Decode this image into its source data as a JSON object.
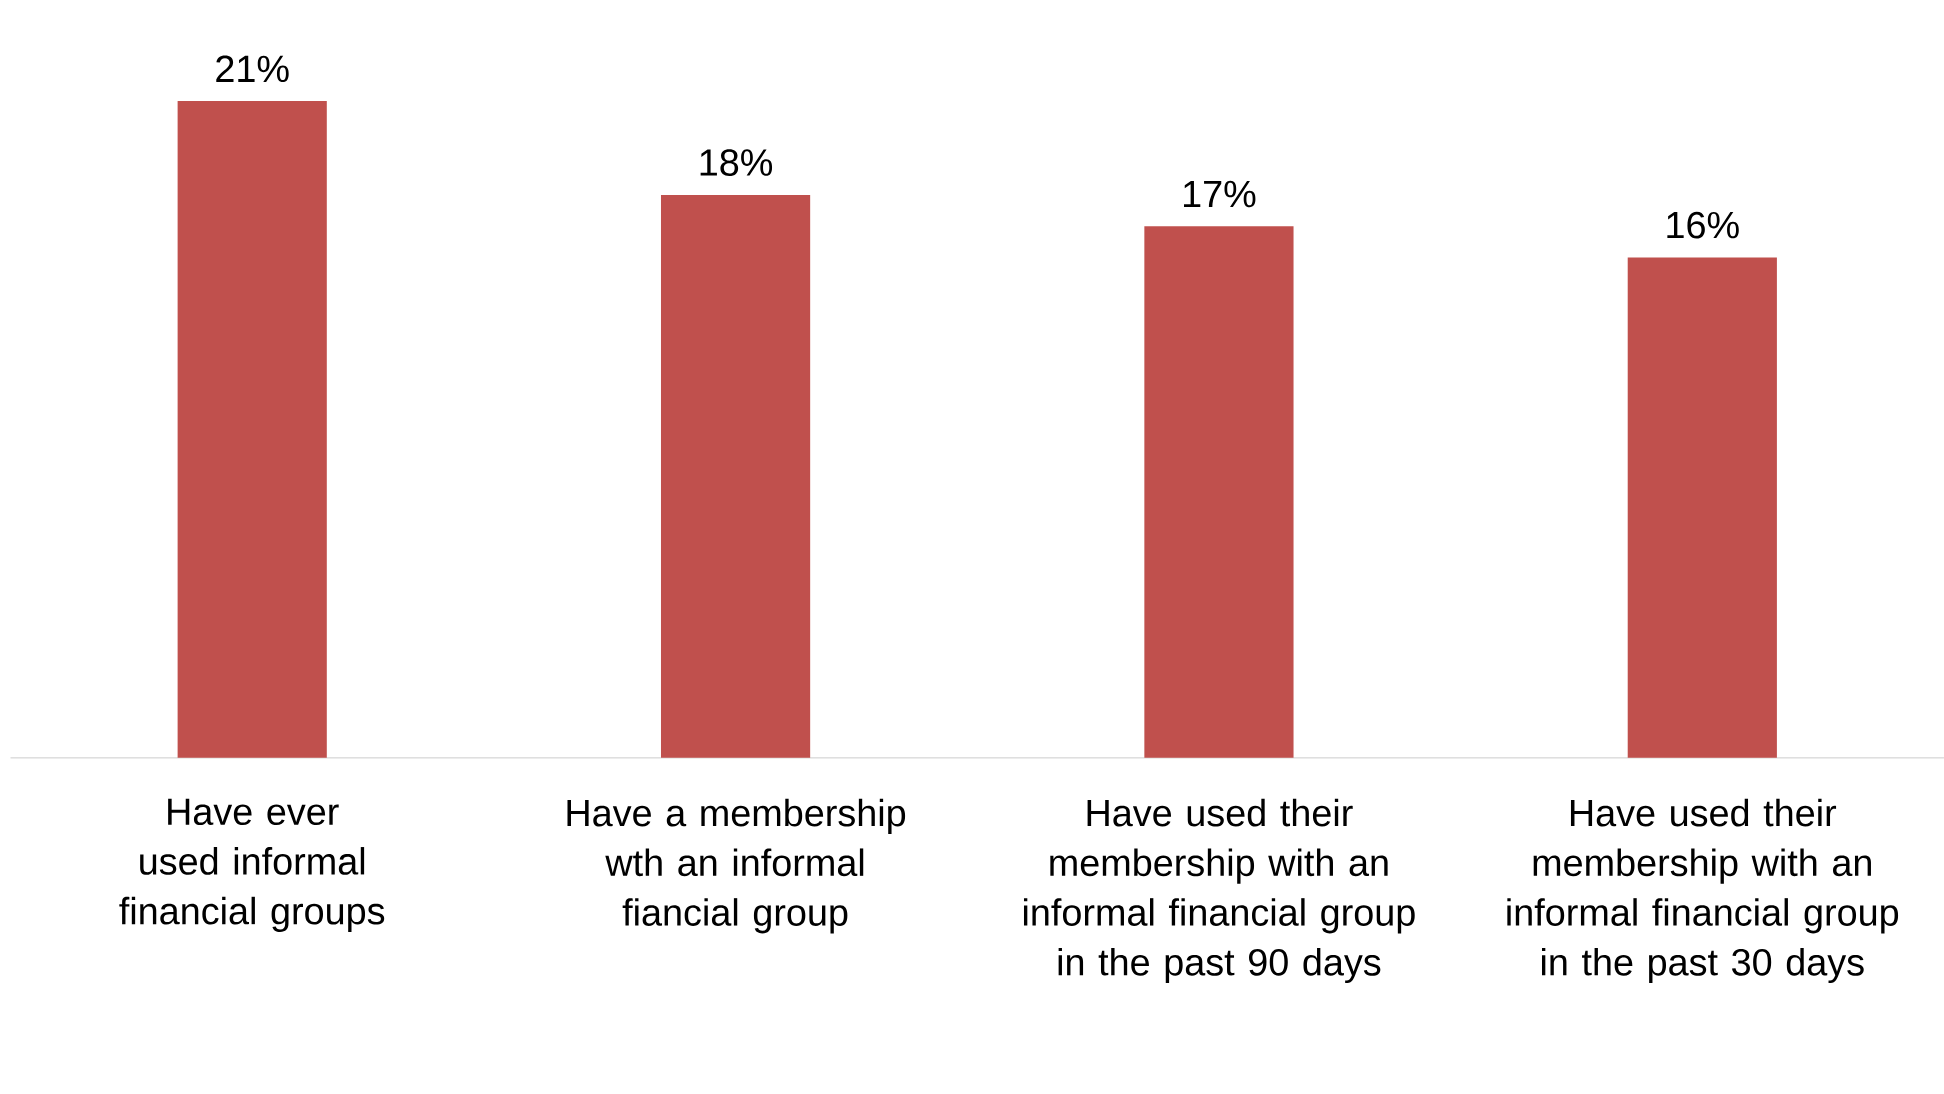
{
  "chart_data": {
    "type": "bar",
    "categories": [
      "Have ever used informal financial groups",
      "Have a membership wth an informal fiancial group",
      "Have used their membership with an informal financial group in the past 90 days",
      "Have used their membership with an informal financial group in the past 30 days"
    ],
    "values": [
      21,
      18,
      17,
      16
    ],
    "value_labels": [
      "21%",
      "18%",
      "17%",
      "16%"
    ],
    "color": "#c0504d"
  }
}
